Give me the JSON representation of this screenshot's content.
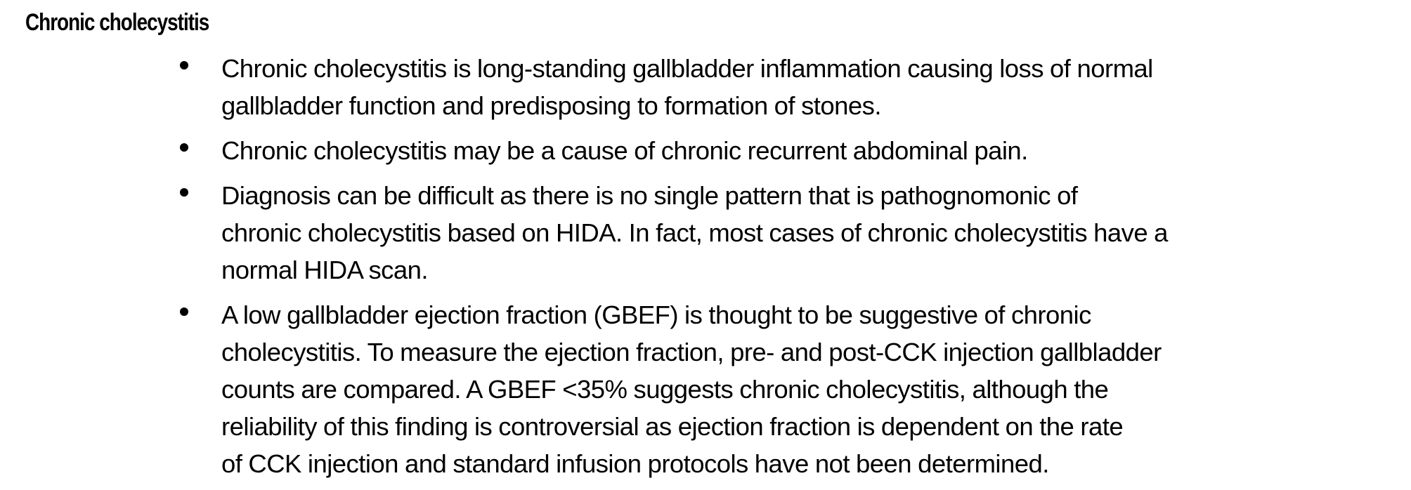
{
  "document": {
    "heading": "Chronic cholecystitis",
    "bullets": [
      {
        "lines": [
          "Chronic cholecystitis is long-standing gallbladder inflammation causing loss of normal",
          "gallbladder function and predisposing to formation of stones."
        ]
      },
      {
        "lines": [
          "Chronic cholecystitis may be a cause of chronic recurrent abdominal pain."
        ]
      },
      {
        "lines": [
          "Diagnosis can be difficult as there is no single pattern that is pathognomonic of",
          "chronic cholecystitis based on HIDA. In fact, most cases of chronic cholecystitis have a",
          "normal HIDA scan."
        ]
      },
      {
        "lines": [
          "A low gallbladder ejection fraction (GBEF) is thought to be suggestive of chronic",
          "cholecystitis. To measure the ejection fraction, pre- and post-CCK injection gallbladder",
          "counts are compared. A GBEF <35% suggests chronic cholecystitis, although the",
          "reliability of this finding is controversial as ejection fraction is dependent on the rate",
          "of CCK injection and standard infusion protocols have not been determined."
        ]
      }
    ]
  }
}
